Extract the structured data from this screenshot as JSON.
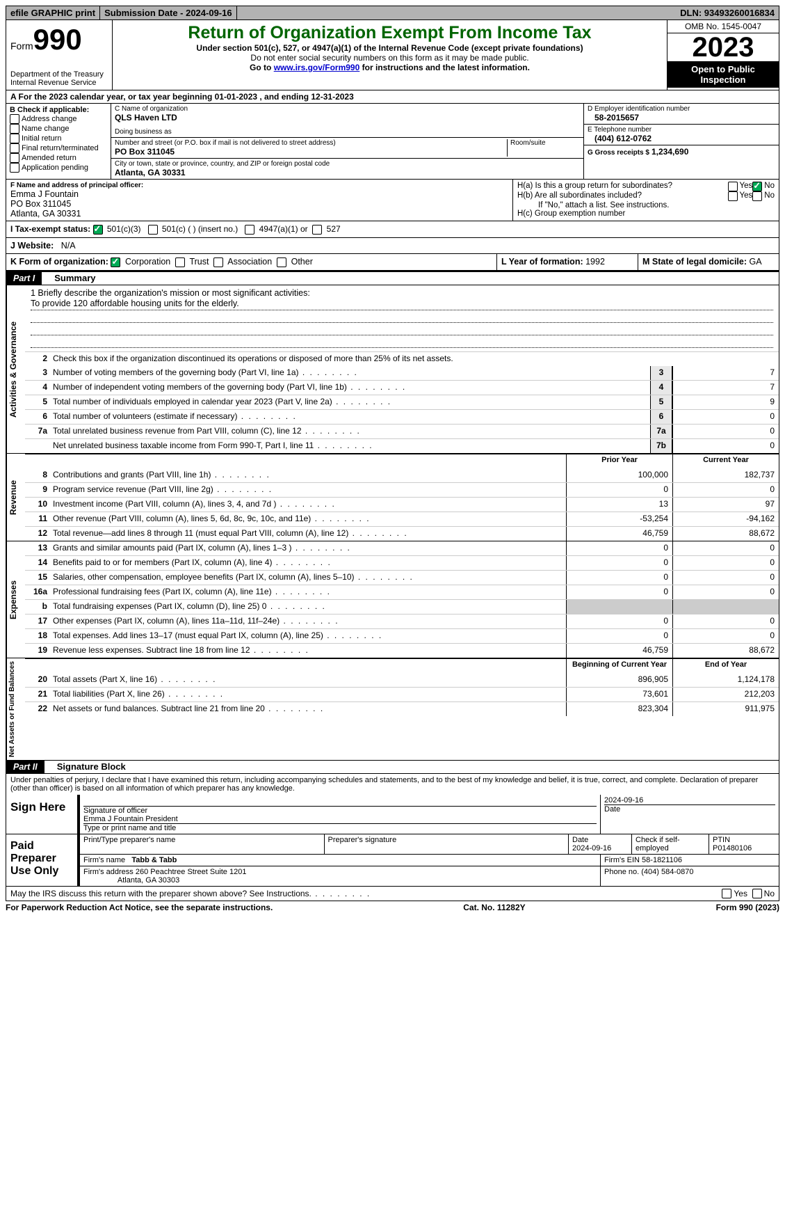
{
  "topbar": {
    "efile": "efile GRAPHIC print",
    "submission_label": "Submission Date - 2024-09-16",
    "dln_label": "DLN: 93493260016834"
  },
  "header": {
    "form_word": "Form",
    "form_num": "990",
    "dept": "Department of the Treasury Internal Revenue Service",
    "title": "Return of Organization Exempt From Income Tax",
    "subtitle": "Under section 501(c), 527, or 4947(a)(1) of the Internal Revenue Code (except private foundations)",
    "warn": "Do not enter social security numbers on this form as it may be made public.",
    "goto_pre": "Go to ",
    "goto_link": "www.irs.gov/Form990",
    "goto_post": " for instructions and the latest information.",
    "omb": "OMB No. 1545-0047",
    "year": "2023",
    "open": "Open to Public Inspection"
  },
  "rowA": "A   For the 2023 calendar year, or tax year beginning 01-01-2023    , and ending 12-31-2023",
  "boxB": {
    "title": "B Check if applicable:",
    "opts": [
      "Address change",
      "Name change",
      "Initial return",
      "Final return/terminated",
      "Amended return",
      "Application pending"
    ]
  },
  "boxC": {
    "name_lbl": "C Name of organization",
    "name": "QLS Haven LTD",
    "dba_lbl": "Doing business as",
    "addr_lbl": "Number and street (or P.O. box if mail is not delivered to street address)",
    "room_lbl": "Room/suite",
    "addr": "PO Box 311045",
    "city_lbl": "City or town, state or province, country, and ZIP or foreign postal code",
    "city": "Atlanta, GA  30331"
  },
  "boxD": {
    "lbl": "D Employer identification number",
    "val": "58-2015657"
  },
  "boxE": {
    "lbl": "E Telephone number",
    "val": "(404) 612-0762"
  },
  "boxG": {
    "lbl": "G Gross receipts $",
    "val": "1,234,690"
  },
  "boxF": {
    "lbl": "F  Name and address of principal officer:",
    "name": "Emma J Fountain",
    "addr1": "PO Box 311045",
    "addr2": "Atlanta, GA  30331"
  },
  "boxH": {
    "a": "H(a)  Is this a group return for subordinates?",
    "b": "H(b)  Are all subordinates included?",
    "b_note": "If \"No,\" attach a list. See instructions.",
    "c": "H(c)  Group exemption number",
    "yes": "Yes",
    "no": "No"
  },
  "boxI": {
    "lbl": "I   Tax-exempt status:",
    "o1": "501(c)(3)",
    "o2": "501(c) (  ) (insert no.)",
    "o3": "4947(a)(1) or",
    "o4": "527"
  },
  "boxJ": {
    "lbl": "J   Website:",
    "val": "N/A"
  },
  "boxK": {
    "lbl": "K Form of organization:",
    "o1": "Corporation",
    "o2": "Trust",
    "o3": "Association",
    "o4": "Other"
  },
  "boxL": {
    "lbl": "L Year of formation:",
    "val": "1992"
  },
  "boxM": {
    "lbl": "M State of legal domicile:",
    "val": "GA"
  },
  "part1": {
    "hdr": "Part I",
    "title": "Summary"
  },
  "gov": {
    "label": "Activities & Governance",
    "l1_lbl": "1   Briefly describe the organization's mission or most significant activities:",
    "l1_val": "To provide 120 affordable housing units for the elderly.",
    "l2": "Check this box      if the organization discontinued its operations or disposed of more than 25% of its net assets.",
    "rows": [
      {
        "n": "3",
        "d": "Number of voting members of the governing body (Part VI, line 1a)",
        "box": "3",
        "v": "7"
      },
      {
        "n": "4",
        "d": "Number of independent voting members of the governing body (Part VI, line 1b)",
        "box": "4",
        "v": "7"
      },
      {
        "n": "5",
        "d": "Total number of individuals employed in calendar year 2023 (Part V, line 2a)",
        "box": "5",
        "v": "9"
      },
      {
        "n": "6",
        "d": "Total number of volunteers (estimate if necessary)",
        "box": "6",
        "v": "0"
      },
      {
        "n": "7a",
        "d": "Total unrelated business revenue from Part VIII, column (C), line 12",
        "box": "7a",
        "v": "0"
      },
      {
        "n": "",
        "d": "Net unrelated business taxable income from Form 990-T, Part I, line 11",
        "box": "7b",
        "v": "0"
      }
    ]
  },
  "rev": {
    "label": "Revenue",
    "hdr_prior": "Prior Year",
    "hdr_cur": "Current Year",
    "rows": [
      {
        "n": "8",
        "d": "Contributions and grants (Part VIII, line 1h)",
        "p": "100,000",
        "c": "182,737"
      },
      {
        "n": "9",
        "d": "Program service revenue (Part VIII, line 2g)",
        "p": "0",
        "c": "0"
      },
      {
        "n": "10",
        "d": "Investment income (Part VIII, column (A), lines 3, 4, and 7d )",
        "p": "13",
        "c": "97"
      },
      {
        "n": "11",
        "d": "Other revenue (Part VIII, column (A), lines 5, 6d, 8c, 9c, 10c, and 11e)",
        "p": "-53,254",
        "c": "-94,162"
      },
      {
        "n": "12",
        "d": "Total revenue—add lines 8 through 11 (must equal Part VIII, column (A), line 12)",
        "p": "46,759",
        "c": "88,672"
      }
    ]
  },
  "exp": {
    "label": "Expenses",
    "rows": [
      {
        "n": "13",
        "d": "Grants and similar amounts paid (Part IX, column (A), lines 1–3 )",
        "p": "0",
        "c": "0"
      },
      {
        "n": "14",
        "d": "Benefits paid to or for members (Part IX, column (A), line 4)",
        "p": "0",
        "c": "0"
      },
      {
        "n": "15",
        "d": "Salaries, other compensation, employee benefits (Part IX, column (A), lines 5–10)",
        "p": "0",
        "c": "0"
      },
      {
        "n": "16a",
        "d": "Professional fundraising fees (Part IX, column (A), line 11e)",
        "p": "0",
        "c": "0"
      },
      {
        "n": "b",
        "d": "Total fundraising expenses (Part IX, column (D), line 25) 0",
        "p": "shade",
        "c": "shade"
      },
      {
        "n": "17",
        "d": "Other expenses (Part IX, column (A), lines 11a–11d, 11f–24e)",
        "p": "0",
        "c": "0"
      },
      {
        "n": "18",
        "d": "Total expenses. Add lines 13–17 (must equal Part IX, column (A), line 25)",
        "p": "0",
        "c": "0"
      },
      {
        "n": "19",
        "d": "Revenue less expenses. Subtract line 18 from line 12",
        "p": "46,759",
        "c": "88,672"
      }
    ]
  },
  "net": {
    "label": "Net Assets or Fund Balances",
    "hdr_beg": "Beginning of Current Year",
    "hdr_end": "End of Year",
    "rows": [
      {
        "n": "20",
        "d": "Total assets (Part X, line 16)",
        "p": "896,905",
        "c": "1,124,178"
      },
      {
        "n": "21",
        "d": "Total liabilities (Part X, line 26)",
        "p": "73,601",
        "c": "212,203"
      },
      {
        "n": "22",
        "d": "Net assets or fund balances. Subtract line 21 from line 20",
        "p": "823,304",
        "c": "911,975"
      }
    ]
  },
  "part2": {
    "hdr": "Part II",
    "title": "Signature Block"
  },
  "perjury": "Under penalties of perjury, I declare that I have examined this return, including accompanying schedules and statements, and to the best of my knowledge and belief, it is true, correct, and complete. Declaration of preparer (other than officer) is based on all information of which preparer has any knowledge.",
  "sign": {
    "here": "Sign Here",
    "sig_lbl": "Signature of officer",
    "sig_name": "Emma J Fountain President",
    "type_lbl": "Type or print name and title",
    "date_lbl": "Date",
    "date": "2024-09-16"
  },
  "paid": {
    "title": "Paid Preparer Use Only",
    "prep_lbl": "Print/Type preparer's name",
    "sig_lbl": "Preparer's signature",
    "date_lbl": "Date",
    "date": "2024-09-16",
    "check_lbl": "Check        if self-employed",
    "ptin_lbl": "PTIN",
    "ptin": "P01480106",
    "firm_lbl": "Firm's name",
    "firm": "Tabb & Tabb",
    "ein_lbl": "Firm's EIN",
    "ein": "58-1821106",
    "addr_lbl": "Firm's address",
    "addr1": "260 Peachtree Street Suite 1201",
    "addr2": "Atlanta, GA  30303",
    "phone_lbl": "Phone no.",
    "phone": "(404) 584-0870"
  },
  "discuss": "May the IRS discuss this return with the preparer shown above? See Instructions.",
  "footer": {
    "left": "For Paperwork Reduction Act Notice, see the separate instructions.",
    "mid": "Cat. No. 11282Y",
    "right": "Form 990 (2023)"
  }
}
